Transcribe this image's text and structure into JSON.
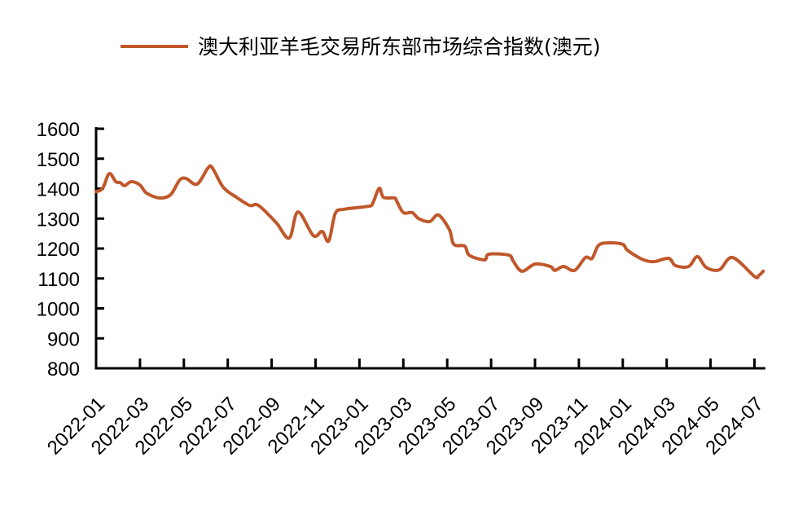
{
  "chart_data": {
    "type": "line",
    "title": "",
    "xlabel": "",
    "ylabel": "",
    "ylim": [
      800,
      1600
    ],
    "yticks": [
      "800",
      "900",
      "1000",
      "1100",
      "1200",
      "1300",
      "1400",
      "1500",
      "1600"
    ],
    "ytick_values": [
      800,
      900,
      1000,
      1100,
      1200,
      1300,
      1400,
      1500,
      1600
    ],
    "x_unit": "months since 2022-01",
    "xlim": [
      0,
      30.5
    ],
    "xticks": [
      "2022-01",
      "2022-03",
      "2022-05",
      "2022-07",
      "2022-09",
      "2022-11",
      "2023-01",
      "2023-03",
      "2023-05",
      "2023-07",
      "2023-09",
      "2023-11",
      "2024-01",
      "2024-03",
      "2024-05",
      "2024-07"
    ],
    "xtick_values": [
      0,
      2,
      4,
      6,
      8,
      10,
      12,
      14,
      16,
      18,
      20,
      22,
      24,
      26,
      28,
      30
    ],
    "grid": false,
    "legend_position": "top",
    "series": [
      {
        "name": "澳大利亚羊毛交易所东部市场综合指数(澳元)",
        "color": "#C0582B",
        "x": [
          0,
          0.3,
          0.6,
          0.9,
          1.1,
          1.3,
          1.6,
          2.0,
          2.3,
          2.9,
          3.4,
          3.8,
          4.1,
          4.6,
          5.1,
          5.3,
          5.8,
          6.4,
          7.0,
          7.4,
          8.2,
          8.8,
          9.2,
          9.9,
          10.3,
          10.6,
          10.9,
          11.3,
          12.4,
          12.6,
          12.9,
          13.1,
          13.6,
          13.7,
          14.0,
          14.4,
          14.7,
          15.2,
          15.6,
          16.1,
          16.3,
          16.8,
          17.0,
          17.7,
          17.9,
          18.8,
          19.0,
          19.4,
          20.0,
          20.7,
          20.9,
          21.3,
          21.8,
          22.3,
          22.6,
          22.9,
          23.4,
          24.0,
          24.2,
          24.8,
          25.2,
          25.5,
          26.1,
          26.4,
          27.0,
          27.4,
          27.8,
          28.4,
          29.0,
          30.0,
          30.2,
          30.4
        ],
        "values": [
          1390,
          1401,
          1450,
          1423,
          1420,
          1410,
          1423,
          1412,
          1385,
          1369,
          1380,
          1428,
          1434,
          1415,
          1469,
          1469,
          1404,
          1371,
          1344,
          1344,
          1287,
          1235,
          1322,
          1243,
          1257,
          1225,
          1317,
          1331,
          1341,
          1350,
          1401,
          1371,
          1369,
          1358,
          1320,
          1320,
          1300,
          1290,
          1312,
          1263,
          1214,
          1208,
          1178,
          1162,
          1181,
          1178,
          1159,
          1124,
          1148,
          1140,
          1127,
          1140,
          1127,
          1170,
          1167,
          1211,
          1219,
          1214,
          1195,
          1167,
          1157,
          1157,
          1167,
          1143,
          1140,
          1173,
          1137,
          1129,
          1170,
          1107,
          1110,
          1124
        ]
      }
    ]
  }
}
